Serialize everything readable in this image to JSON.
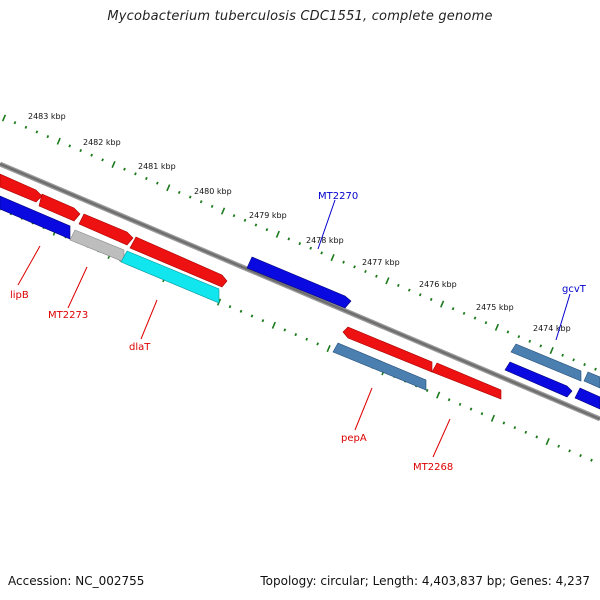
{
  "title": "Mycobacterium tuberculosis CDC1551, complete genome",
  "footer": {
    "accession": "Accession: NC_002755",
    "summary": "Topology: circular; Length: 4,403,837 bp; Genes: 4,237"
  },
  "ruler": {
    "labels": [
      "2483 kbp",
      "2482 kbp",
      "2481 kbp",
      "2480 kbp",
      "2479 kbp",
      "2478 kbp",
      "2477 kbp",
      "2476 kbp",
      "2475 kbp",
      "2474 kbp"
    ]
  },
  "colors": {
    "red": "#ee1111",
    "blue": "#0a0ae0",
    "steel": "#4a7fb0",
    "cyan": "#11e6ee",
    "gray": "#bdbdbd",
    "backbone": "#6e6e6e",
    "tick_green": "#1c7a1c",
    "label_red": "#dd0000",
    "label_blue": "#0000cc"
  },
  "gene_labels": [
    "lipB",
    "MT2273",
    "dlaT",
    "MT2270",
    "pepA",
    "MT2268",
    "gcvT"
  ]
}
